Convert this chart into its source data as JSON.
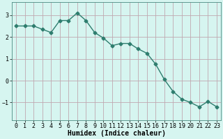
{
  "x": [
    0,
    1,
    2,
    3,
    4,
    5,
    6,
    7,
    8,
    9,
    10,
    11,
    12,
    13,
    14,
    15,
    16,
    17,
    18,
    19,
    20,
    21,
    22,
    23
  ],
  "y": [
    2.5,
    2.5,
    2.5,
    2.35,
    2.2,
    2.75,
    2.75,
    3.1,
    2.75,
    2.2,
    1.95,
    1.6,
    1.7,
    1.7,
    1.45,
    1.25,
    0.75,
    0.05,
    -0.5,
    -0.85,
    -1.0,
    -1.2,
    -0.95,
    -1.2
  ],
  "line_color": "#2e7d6e",
  "marker": "D",
  "markersize": 2.5,
  "linewidth": 1.0,
  "bg_color": "#d6f5f0",
  "grid_color": "#c0a8b0",
  "xlabel": "Humidex (Indice chaleur)",
  "xlabel_fontsize": 7,
  "tick_fontsize": 6,
  "ylim": [
    -1.8,
    3.6
  ],
  "yticks": [
    -1,
    0,
    1,
    2,
    3
  ],
  "xticks": [
    0,
    1,
    2,
    3,
    4,
    5,
    6,
    7,
    8,
    9,
    10,
    11,
    12,
    13,
    14,
    15,
    16,
    17,
    18,
    19,
    20,
    21,
    22,
    23
  ]
}
